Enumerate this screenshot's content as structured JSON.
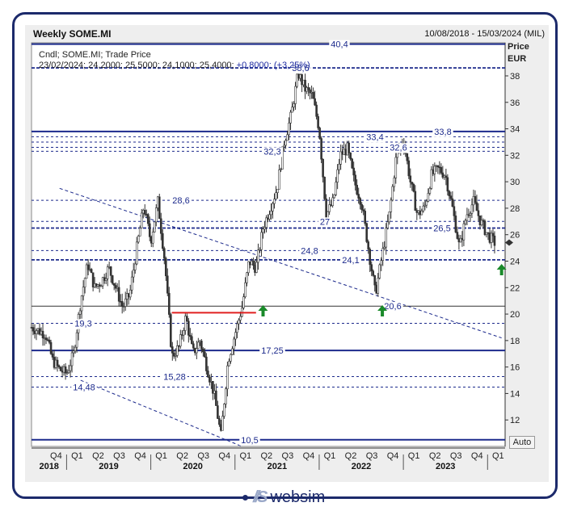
{
  "header": {
    "title": "Weekly SOME.MI",
    "range": "10/08/2018 - 15/03/2024 (MIL)",
    "info_line1": "Cndl; SOME.MI; Trade Price",
    "info_line2_values": "23/02/2024; 24,2000; 25,5000; 24,1000; 25,4000;",
    "info_line2_change": "+0,8000; (+3,25%)"
  },
  "axis": {
    "y_title": "Price",
    "y_unit": "EUR",
    "auto_label": "Auto"
  },
  "footer": {
    "brand": "websim",
    "brand_mark": "//S"
  },
  "colors": {
    "level": "#1c2a8c",
    "candle": "#333333",
    "red_segment": "#e02020",
    "arrow": "#1a8a2a"
  },
  "chart_data": {
    "type": "candlestick",
    "ylim": [
      10,
      40.5
    ],
    "yticks": [
      12,
      14,
      16,
      18,
      20,
      22,
      24,
      26,
      28,
      30,
      32,
      34,
      36,
      38
    ],
    "quarters": [
      "Q4",
      "Q1",
      "Q2",
      "Q3",
      "Q4",
      "Q1",
      "Q2",
      "Q3",
      "Q4",
      "Q1",
      "Q2",
      "Q3",
      "Q4",
      "Q1",
      "Q2",
      "Q3",
      "Q4",
      "Q1",
      "Q2",
      "Q3",
      "Q4",
      "Q1"
    ],
    "years": [
      "2018",
      "2019",
      "2020",
      "2021",
      "2022",
      "2023"
    ],
    "close_path_points": [
      [
        "2018-08",
        19.0
      ],
      [
        "2018-10",
        18.5
      ],
      [
        "2018-11",
        16.5
      ],
      [
        "2018-12",
        15.8
      ],
      [
        "2019-01",
        15.5
      ],
      [
        "2019-02",
        17.0
      ],
      [
        "2019-03",
        21.0
      ],
      [
        "2019-04",
        23.8
      ],
      [
        "2019-05",
        22.0
      ],
      [
        "2019-06",
        22.5
      ],
      [
        "2019-07",
        23.5
      ],
      [
        "2019-08",
        22.0
      ],
      [
        "2019-09",
        20.5
      ],
      [
        "2019-10",
        21.5
      ],
      [
        "2019-11",
        25.0
      ],
      [
        "2019-12",
        28.2
      ],
      [
        "2020-01",
        25.5
      ],
      [
        "2020-02",
        28.5
      ],
      [
        "2020-03",
        24.0
      ],
      [
        "2020-04",
        16.8
      ],
      [
        "2020-05",
        17.5
      ],
      [
        "2020-06",
        19.8
      ],
      [
        "2020-07",
        17.0
      ],
      [
        "2020-08",
        18.0
      ],
      [
        "2020-09",
        16.0
      ],
      [
        "2020-10",
        14.0
      ],
      [
        "2020-11",
        10.8
      ],
      [
        "2020-12",
        16.5
      ],
      [
        "2021-01",
        18.5
      ],
      [
        "2021-02",
        20.5
      ],
      [
        "2021-03",
        24.0
      ],
      [
        "2021-04",
        23.5
      ],
      [
        "2021-05",
        26.5
      ],
      [
        "2021-06",
        28.0
      ],
      [
        "2021-07",
        29.5
      ],
      [
        "2021-08",
        33.0
      ],
      [
        "2021-09",
        35.0
      ],
      [
        "2021-10",
        38.2
      ],
      [
        "2021-11",
        37.0
      ],
      [
        "2021-12",
        36.5
      ],
      [
        "2022-01",
        34.0
      ],
      [
        "2022-02",
        27.5
      ],
      [
        "2022-03",
        28.5
      ],
      [
        "2022-04",
        32.0
      ],
      [
        "2022-05",
        32.5
      ],
      [
        "2022-06",
        30.0
      ],
      [
        "2022-07",
        28.5
      ],
      [
        "2022-08",
        25.0
      ],
      [
        "2022-09",
        21.5
      ],
      [
        "2022-10",
        24.5
      ],
      [
        "2022-11",
        27.5
      ],
      [
        "2022-12",
        32.0
      ],
      [
        "2023-01",
        33.2
      ],
      [
        "2023-02",
        30.0
      ],
      [
        "2023-03",
        27.5
      ],
      [
        "2023-04",
        28.0
      ],
      [
        "2023-05",
        30.5
      ],
      [
        "2023-06",
        31.0
      ],
      [
        "2023-07",
        30.5
      ],
      [
        "2023-08",
        28.0
      ],
      [
        "2023-09",
        25.0
      ],
      [
        "2023-10",
        27.5
      ],
      [
        "2023-11",
        28.5
      ],
      [
        "2023-12",
        27.0
      ],
      [
        "2024-01",
        26.0
      ],
      [
        "2024-02",
        25.4
      ]
    ],
    "levels_solid": [
      {
        "value": 40.4,
        "label": "40,4"
      },
      {
        "value": 33.8,
        "label": "33,8"
      },
      {
        "value": 17.25,
        "label": "17,25"
      },
      {
        "value": 10.5,
        "label": "10,5"
      }
    ],
    "levels_dashed": [
      {
        "value": 38.6,
        "label": "38,6",
        "bold": true
      },
      {
        "value": 33.4,
        "label": "33,4"
      },
      {
        "value": 33.0,
        "label": ""
      },
      {
        "value": 32.6,
        "label": "32,6"
      },
      {
        "value": 32.3,
        "label": "32,3"
      },
      {
        "value": 28.6,
        "label": "28,6"
      },
      {
        "value": 27.0,
        "label": "27"
      },
      {
        "value": 26.5,
        "label": "26,5",
        "bold": true
      },
      {
        "value": 24.8,
        "label": "24,8"
      },
      {
        "value": 24.1,
        "label": "24,1",
        "bold": true
      },
      {
        "value": 19.3,
        "label": "19,3"
      },
      {
        "value": 15.28,
        "label": "15,28"
      },
      {
        "value": 14.48,
        "label": "14,48"
      }
    ],
    "thin_levels": [
      {
        "value": 20.6,
        "label": "20,6"
      }
    ],
    "last_price": 25.4,
    "trendline_upper": [
      [
        "2018-12",
        29.5
      ],
      [
        "2024-03",
        18.2
      ]
    ],
    "trendline_lower": [
      [
        "2019-03",
        15.0
      ],
      [
        "2021-02",
        10.0
      ]
    ],
    "red_segment": [
      [
        "2020-04",
        20.1
      ],
      [
        "2021-04",
        20.1
      ]
    ],
    "up_arrows": [
      "2021-05",
      "2022-10",
      "2024-03"
    ]
  }
}
